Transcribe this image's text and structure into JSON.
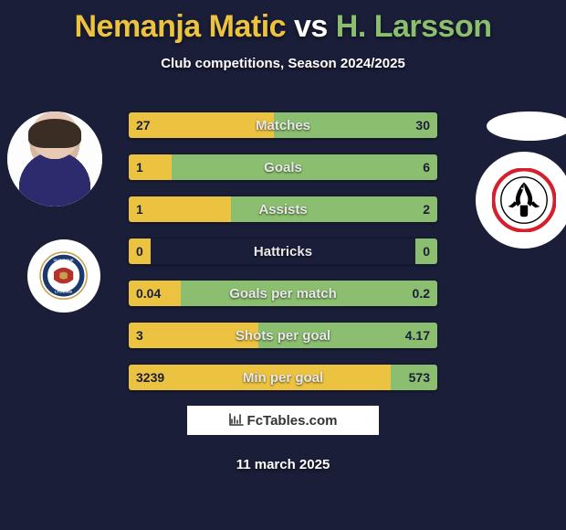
{
  "header": {
    "player1": "Nemanja Matic",
    "vs": " vs ",
    "player2": "H. Larsson",
    "subtitle": "Club competitions, Season 2024/2025"
  },
  "stats": [
    {
      "label": "Matches",
      "l": "27",
      "r": "30",
      "lw": 47,
      "rw": 53
    },
    {
      "label": "Goals",
      "l": "1",
      "r": "6",
      "lw": 14,
      "rw": 86
    },
    {
      "label": "Assists",
      "l": "1",
      "r": "2",
      "lw": 33,
      "rw": 67
    },
    {
      "label": "Hattricks",
      "l": "0",
      "r": "0",
      "lw": 7,
      "rw": 7
    },
    {
      "label": "Goals per match",
      "l": "0.04",
      "r": "0.2",
      "lw": 17,
      "rw": 83
    },
    {
      "label": "Shots per goal",
      "l": "3",
      "r": "4.17",
      "lw": 42,
      "rw": 58
    },
    {
      "label": "Min per goal",
      "l": "3239",
      "r": "573",
      "lw": 85,
      "rw": 15
    }
  ],
  "colors": {
    "p1": "#ecc340",
    "p2": "#8bbf6f",
    "bg": "#1a1e38"
  },
  "footer": {
    "logo_icon": "📊",
    "logo_text": "FcTables.com",
    "date": "11 march 2025"
  },
  "team_names": {
    "p1_player": "Nemanja Matic",
    "p2_player": "H. Larsson",
    "p1_club": "Olympique Lyonnais",
    "p2_club": "Eintracht Frankfurt"
  }
}
